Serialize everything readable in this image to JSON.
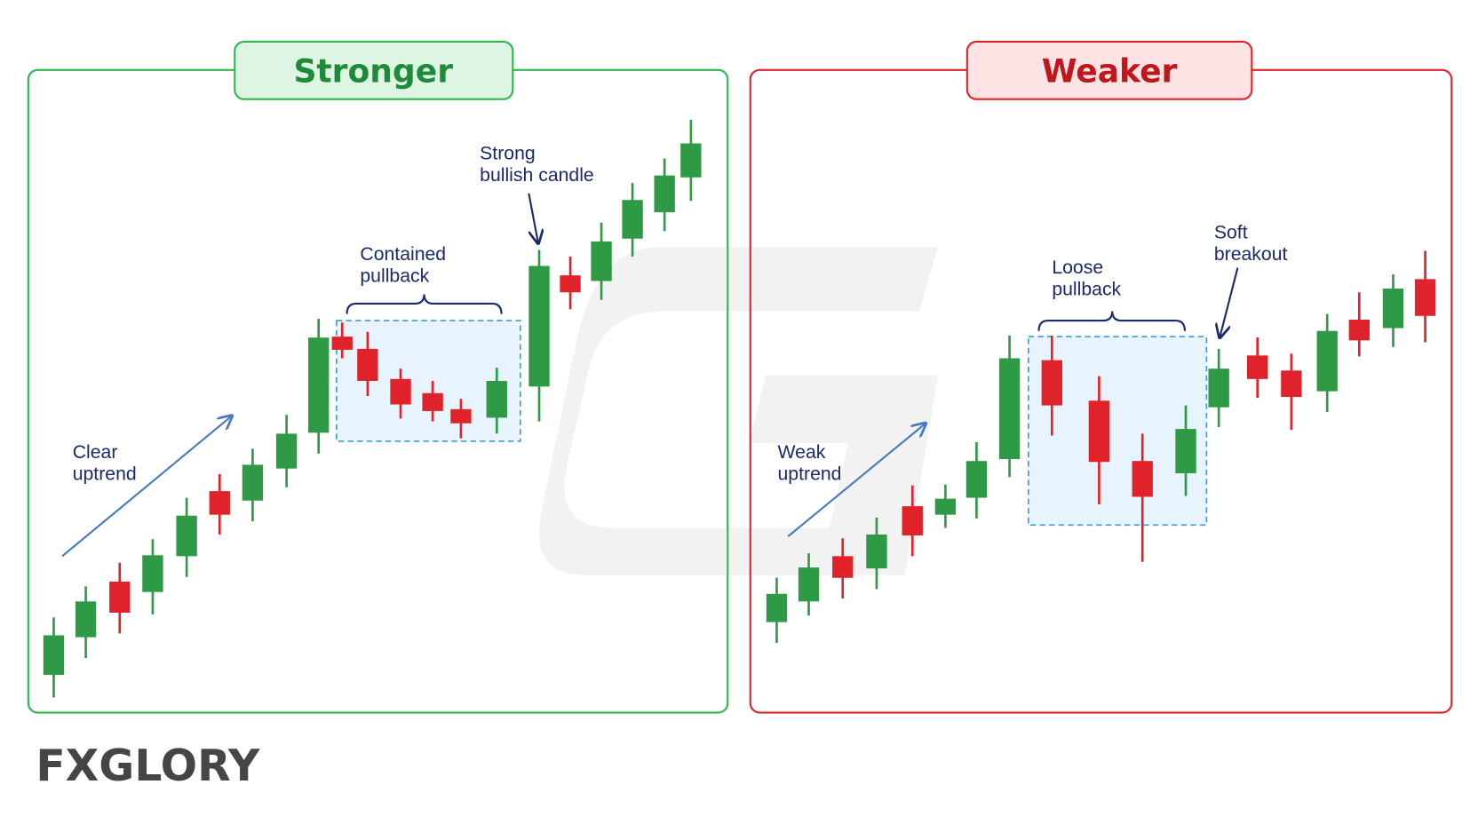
{
  "panels": [
    {
      "title": "Stronger",
      "labels": [
        {
          "lines": [
            "Clear",
            "uptrend"
          ]
        },
        {
          "lines": [
            "Contained",
            "pullback"
          ]
        },
        {
          "lines": [
            "Strong",
            "bullish candle"
          ]
        }
      ]
    },
    {
      "title": "Weaker",
      "labels": [
        {
          "lines": [
            "Weak",
            "uptrend"
          ]
        },
        {
          "lines": [
            "Loose",
            "pullback"
          ]
        },
        {
          "lines": [
            "Soft",
            "breakout"
          ]
        }
      ]
    }
  ],
  "logo": "FXGLORY"
}
